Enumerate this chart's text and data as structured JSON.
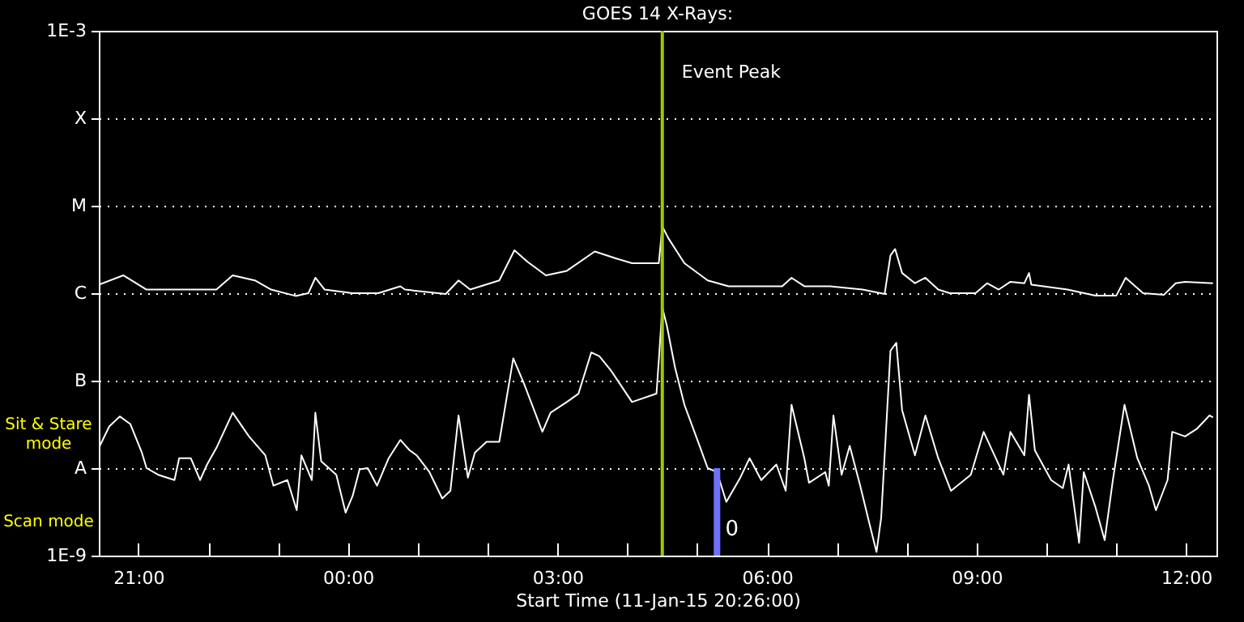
{
  "chart_data": {
    "type": "line",
    "title": "GOES 14 X-Rays:",
    "xlabel": "Start Time (11-Jan-15 20:26:00)",
    "log": "y",
    "grid": "y",
    "xlim": [
      "--01-11T20:26",
      "--01-12T12:26"
    ],
    "ylim": [
      1e-09,
      0.001
    ],
    "xticks": [
      {
        "value": "--01-11T21:00",
        "label": "21:00"
      },
      {
        "value": "--01-11T22:00",
        "label": null
      },
      {
        "value": "--01-11T23:00",
        "label": null
      },
      {
        "value": "--01-12T00:00",
        "label": "00:00"
      },
      {
        "value": "--01-12T01:00",
        "label": null
      },
      {
        "value": "--01-12T02:00",
        "label": null
      },
      {
        "value": "--01-12T03:00",
        "label": "03:00"
      },
      {
        "value": "--01-12T04:00",
        "label": null
      },
      {
        "value": "--01-12T05:00",
        "label": null
      },
      {
        "value": "--01-12T06:00",
        "label": "06:00"
      },
      {
        "value": "--01-12T07:00",
        "label": null
      },
      {
        "value": "--01-12T08:00",
        "label": null
      },
      {
        "value": "--01-12T09:00",
        "label": "09:00"
      },
      {
        "value": "--01-12T10:00",
        "label": null
      },
      {
        "value": "--01-12T11:00",
        "label": null
      },
      {
        "value": "--01-12T12:00",
        "label": "12:00"
      }
    ],
    "yticks": [
      {
        "value": 1e-09,
        "label": "1E-9"
      },
      {
        "value": 1e-08,
        "label": "A"
      },
      {
        "value": 1e-07,
        "label": "B"
      },
      {
        "value": 1e-06,
        "label": "C"
      },
      {
        "value": 1e-05,
        "label": "M"
      },
      {
        "value": 0.0001,
        "label": "X"
      },
      {
        "value": 0.001,
        "label": "1E-3"
      }
    ],
    "series": [
      {
        "color": "#ffffff",
        "x": [
          "--01-11T20:26",
          "--01-11T20:47",
          "--01-11T21:07",
          "--01-11T22:07",
          "--01-11T22:21",
          "--01-11T22:40",
          "--01-11T22:54",
          "--01-11T23:15",
          "--01-11T23:26",
          "--01-11T23:32",
          "--01-11T23:40",
          "--01-12T00:04",
          "--01-12T00:26",
          "--01-12T00:45",
          "--01-12T00:49",
          "--01-12T01:24",
          "--01-12T01:35",
          "--01-12T01:45",
          "--01-12T02:10",
          "--01-12T02:23",
          "--01-12T02:34",
          "--01-12T02:50",
          "--01-12T03:08",
          "--01-12T03:32",
          "--01-12T03:50",
          "--01-12T04:04",
          "--01-12T04:27",
          "--01-12T04:30",
          "--01-12T04:35",
          "--01-12T04:49",
          "--01-12T05:09",
          "--01-12T05:27",
          "--01-12T06:13",
          "--01-12T06:21",
          "--01-12T06:32",
          "--01-12T06:54",
          "--01-12T07:22",
          "--01-12T07:41",
          "--01-12T07:46",
          "--01-12T07:50",
          "--01-12T07:56",
          "--01-12T08:07",
          "--01-12T08:16",
          "--01-12T08:27",
          "--01-12T08:37",
          "--01-12T08:59",
          "--01-12T09:09",
          "--01-12T09:19",
          "--01-12T09:29",
          "--01-12T09:41",
          "--01-12T09:45",
          "--01-12T09:47",
          "--01-12T10:18",
          "--01-12T10:42",
          "--01-12T11:00",
          "--01-12T11:08",
          "--01-12T11:23",
          "--01-12T11:41",
          "--01-12T11:51",
          "--01-12T11:59",
          "--01-12T12:23"
        ],
        "values": [
          1.25e-06,
          1.6e-06,
          1.1e-06,
          1.1e-06,
          1.6e-06,
          1.4e-06,
          1.1e-06,
          9.3e-07,
          1e-06,
          1.5e-06,
          1.1e-06,
          1e-06,
          1e-06,
          1.2e-06,
          1.1e-06,
          9.8e-07,
          1.4e-06,
          1.1e-06,
          1.4e-06,
          3.1e-06,
          2.3e-06,
          1.6e-06,
          1.8e-06,
          3e-06,
          2.5e-06,
          2.2e-06,
          2.2e-06,
          5.8e-06,
          4.3e-06,
          2.2e-06,
          1.4e-06,
          1.2e-06,
          1.2e-06,
          1.5e-06,
          1.2e-06,
          1.2e-06,
          1.1e-06,
          9.8e-07,
          2.7e-06,
          3.2e-06,
          1.7e-06,
          1.3e-06,
          1.5e-06,
          1.1e-06,
          1e-06,
          1e-06,
          1.3e-06,
          1.1e-06,
          1.35e-06,
          1.3e-06,
          1.7e-06,
          1.25e-06,
          1.1e-06,
          9.4e-07,
          9.4e-07,
          1.5e-06,
          1e-06,
          9.6e-07,
          1.3e-06,
          1.35e-06,
          1.3e-06
        ]
      },
      {
        "color": "#ffffff",
        "x": [
          "--01-11T20:26",
          "--01-11T20:35",
          "--01-11T20:44",
          "--01-11T20:53",
          "--01-11T21:03",
          "--01-11T21:07",
          "--01-11T21:17",
          "--01-11T21:31",
          "--01-11T21:35",
          "--01-11T21:45",
          "--01-11T21:53",
          "--01-11T21:59",
          "--01-11T22:07",
          "--01-11T22:21",
          "--01-11T22:35",
          "--01-11T22:49",
          "--01-11T22:56",
          "--01-11T23:08",
          "--01-11T23:16",
          "--01-11T23:20",
          "--01-11T23:29",
          "--01-11T23:32",
          "--01-11T23:37",
          "--01-11T23:50",
          "--01-11T23:58",
          "--01-12T00:04",
          "--01-12T00:10",
          "--01-12T00:17",
          "--01-12T00:25",
          "--01-12T00:35",
          "--01-12T00:45",
          "--01-12T00:53",
          "--01-12T00:59",
          "--01-12T01:10",
          "--01-12T01:21",
          "--01-12T01:28",
          "--01-12T01:35",
          "--01-12T01:43",
          "--01-12T01:49",
          "--01-12T01:59",
          "--01-12T02:10",
          "--01-12T02:22",
          "--01-12T02:31",
          "--01-12T02:47",
          "--01-12T02:54",
          "--01-12T03:08",
          "--01-12T03:18",
          "--01-12T03:29",
          "--01-12T03:36",
          "--01-12T03:46",
          "--01-12T04:04",
          "--01-12T04:25",
          "--01-12T04:27",
          "--01-12T04:30",
          "--01-12T04:34",
          "--01-12T04:41",
          "--01-12T04:49",
          "--01-12T05:02",
          "--01-12T05:09",
          "--01-12T05:17",
          "--01-12T05:25",
          "--01-12T05:37",
          "--01-12T05:45",
          "--01-12T05:55",
          "--01-12T06:08",
          "--01-12T06:16",
          "--01-12T06:21",
          "--01-12T06:32",
          "--01-12T06:36",
          "--01-12T06:50",
          "--01-12T06:53",
          "--01-12T06:57",
          "--01-12T07:04",
          "--01-12T07:11",
          "--01-12T07:20",
          "--01-12T07:28",
          "--01-12T07:34",
          "--01-12T07:38",
          "--01-12T07:46",
          "--01-12T07:51",
          "--01-12T07:56",
          "--01-12T08:07",
          "--01-12T08:16",
          "--01-12T08:27",
          "--01-12T08:38",
          "--01-12T08:55",
          "--01-12T09:06",
          "--01-12T09:23",
          "--01-12T09:29",
          "--01-12T09:41",
          "--01-12T09:45",
          "--01-12T09:50",
          "--01-12T10:04",
          "--01-12T10:14",
          "--01-12T10:19",
          "--01-12T10:28",
          "--01-12T10:32",
          "--01-12T10:42",
          "--01-12T10:50",
          "--01-12T10:57",
          "--01-12T11:07",
          "--01-12T11:18",
          "--01-12T11:28",
          "--01-12T11:34",
          "--01-12T11:44",
          "--01-12T11:48",
          "--01-12T11:59",
          "--01-12T12:09",
          "--01-12T12:20",
          "--01-12T12:23"
        ],
        "values": [
          1.7e-08,
          3e-08,
          3.9e-08,
          3.2e-08,
          1.5e-08,
          1e-08,
          8.4e-09,
          7.3e-09,
          1.3e-08,
          1.3e-08,
          7.3e-09,
          1.1e-08,
          1.7e-08,
          4.3e-08,
          2.3e-08,
          1.4e-08,
          6.3e-09,
          7.3e-09,
          3.3e-09,
          1.4e-08,
          7.3e-09,
          4.3e-08,
          1.2e-08,
          8.4e-09,
          3.1e-09,
          4.8e-09,
          9.7e-09,
          1e-08,
          6.3e-09,
          1.3e-08,
          2.1e-08,
          1.6e-08,
          1.4e-08,
          9e-09,
          4.5e-09,
          5.5e-09,
          4e-08,
          7.8e-09,
          1.5e-08,
          2e-08,
          2e-08,
          1.8e-07,
          9.4e-08,
          2.6e-08,
          4.3e-08,
          5.7e-08,
          7.1e-08,
          2.1e-07,
          1.9e-07,
          1.3e-07,
          5.7e-08,
          7.1e-08,
          1.7e-07,
          6.9e-07,
          4.2e-07,
          1.4e-07,
          5.3e-08,
          1.8e-08,
          1e-08,
          9e-09,
          4.1e-09,
          7.8e-09,
          1.3e-08,
          7.3e-09,
          1.1e-08,
          5.5e-09,
          5.3e-08,
          1.3e-08,
          6.8e-09,
          9e-09,
          6.3e-09,
          4e-08,
          8.4e-09,
          1.8e-08,
          6.3e-09,
          2.3e-09,
          1.1e-09,
          2.7e-09,
          2.2e-07,
          2.7e-07,
          4.6e-08,
          1.4e-08,
          4e-08,
          1.3e-08,
          5.5e-09,
          8.4e-09,
          2.6e-08,
          8.4e-09,
          2.6e-08,
          1.4e-08,
          6.9e-08,
          1.6e-08,
          7.3e-09,
          5.9e-09,
          1.1e-08,
          1.4e-09,
          9e-09,
          3.6e-09,
          1.5e-09,
          7.3e-09,
          5.3e-08,
          1.3e-08,
          6.3e-09,
          3.3e-09,
          7.3e-09,
          2.6e-08,
          2.3e-08,
          2.8e-08,
          4e-08,
          3.8e-08
        ]
      },
      {
        "type": "bar",
        "color": "#7070ff",
        "x": [
          "--01-12T05:17"
        ],
        "values": [
          1e-08
        ]
      }
    ],
    "ref_lines": [
      {
        "axis": "x",
        "value": "--01-12T04:30",
        "label": "Event Peak",
        "color": "#99cc00"
      }
    ],
    "annotations": [
      "Sit & Stare mode",
      "Scan mode",
      {
        "text": "0",
        "x": "--01-12T05:24",
        "y": 2e-09
      }
    ]
  }
}
